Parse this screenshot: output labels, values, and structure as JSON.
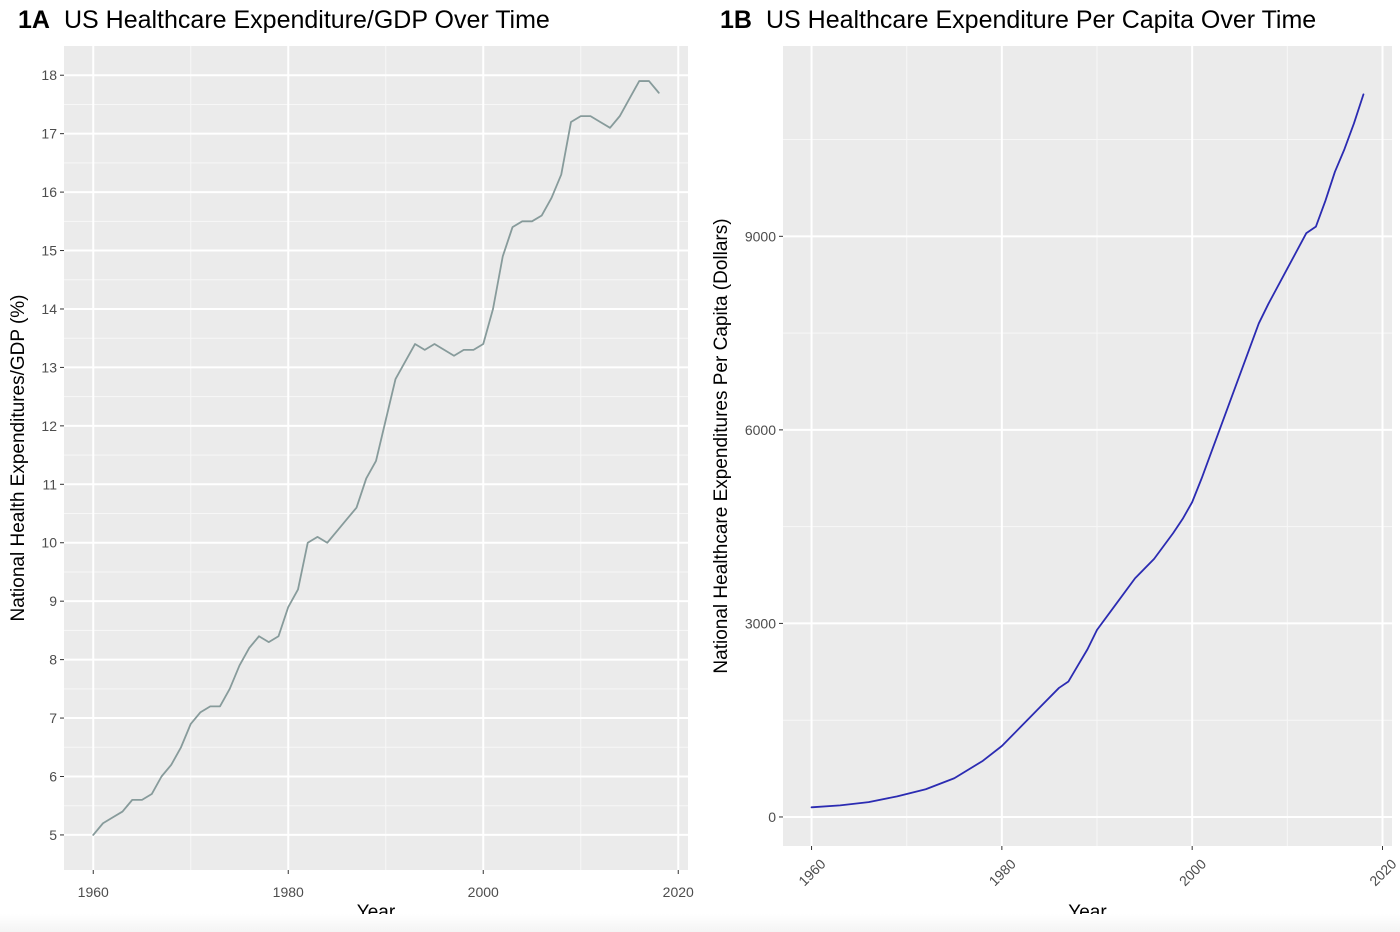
{
  "chart_data": [
    {
      "type": "line",
      "panel_label": "1A",
      "title": "US Healthcare Expenditure/GDP Over Time",
      "xlabel": "Year",
      "ylabel": "National Health Expenditures/GDP (%)",
      "xlim": [
        1957,
        2021
      ],
      "ylim": [
        4.4,
        18.5
      ],
      "x_ticks": [
        1960,
        1980,
        2000,
        2020
      ],
      "y_ticks": [
        5,
        6,
        7,
        8,
        9,
        10,
        11,
        12,
        13,
        14,
        15,
        16,
        17,
        18
      ],
      "x_tick_labels": [
        "1960",
        "1980",
        "2000",
        "2020"
      ],
      "y_tick_labels": [
        "5",
        "6",
        "7",
        "8",
        "9",
        "10",
        "11",
        "12",
        "13",
        "14",
        "15",
        "16",
        "17",
        "18"
      ],
      "x_tick_rotation": 0,
      "grid": true,
      "line_color": "#879b9b",
      "background_color": "#ebebeb",
      "series": [
        {
          "x": [
            1960,
            1961,
            1962,
            1963,
            1964,
            1965,
            1966,
            1967,
            1968,
            1969,
            1970,
            1971,
            1972,
            1973,
            1974,
            1975,
            1976,
            1977,
            1978,
            1979,
            1980,
            1981,
            1982,
            1983,
            1984,
            1985,
            1986,
            1987,
            1988,
            1989,
            1990,
            1991,
            1992,
            1993,
            1994,
            1995,
            1996,
            1997,
            1998,
            1999,
            2000,
            2001,
            2002,
            2003,
            2004,
            2005,
            2006,
            2007,
            2008,
            2009,
            2010,
            2011,
            2012,
            2013,
            2014,
            2015,
            2016,
            2017,
            2018
          ],
          "values": [
            5.0,
            5.2,
            5.3,
            5.4,
            5.6,
            5.6,
            5.7,
            6.0,
            6.2,
            6.5,
            6.9,
            7.1,
            7.2,
            7.2,
            7.5,
            7.9,
            8.2,
            8.4,
            8.3,
            8.4,
            8.9,
            9.2,
            10.0,
            10.1,
            10.0,
            10.2,
            10.4,
            10.6,
            11.1,
            11.4,
            12.1,
            12.8,
            13.1,
            13.4,
            13.3,
            13.4,
            13.3,
            13.2,
            13.3,
            13.3,
            13.4,
            14.0,
            14.9,
            15.4,
            15.5,
            15.5,
            15.6,
            15.9,
            16.3,
            17.2,
            17.3,
            17.3,
            17.2,
            17.1,
            17.3,
            17.6,
            17.9,
            17.9,
            17.7
          ]
        }
      ]
    },
    {
      "type": "line",
      "panel_label": "1B",
      "title": "US Healthcare Expenditure Per Capita Over Time",
      "xlabel": "Year",
      "ylabel": "National Healthcare Expenditures Per Capita (Dollars)",
      "xlim": [
        1957,
        2021
      ],
      "ylim": [
        -450,
        11950
      ],
      "x_ticks": [
        1960,
        1980,
        2000,
        2020
      ],
      "y_ticks": [
        0,
        3000,
        6000,
        9000
      ],
      "x_tick_labels": [
        "1960",
        "1980",
        "2000",
        "2020"
      ],
      "y_tick_labels": [
        "0",
        "3000",
        "6000",
        "9000"
      ],
      "x_tick_rotation": -45,
      "grid": true,
      "line_color": "#2b2bb2",
      "background_color": "#ebebeb",
      "series": [
        {
          "x": [
            1960,
            1963,
            1966,
            1969,
            1972,
            1975,
            1978,
            1980,
            1982,
            1984,
            1986,
            1987,
            1988,
            1989,
            1990,
            1992,
            1994,
            1996,
            1998,
            1999,
            2000,
            2001,
            2002,
            2003,
            2005,
            2007,
            2008,
            2010,
            2012,
            2013,
            2014,
            2015,
            2016,
            2017,
            2018
          ],
          "values": [
            150,
            180,
            230,
            320,
            430,
            600,
            870,
            1100,
            1400,
            1700,
            2000,
            2100,
            2350,
            2600,
            2900,
            3300,
            3700,
            4000,
            4400,
            4620,
            4880,
            5250,
            5650,
            6050,
            6850,
            7650,
            7950,
            8500,
            9050,
            9150,
            9550,
            10000,
            10350,
            10750,
            11200
          ]
        }
      ]
    }
  ]
}
